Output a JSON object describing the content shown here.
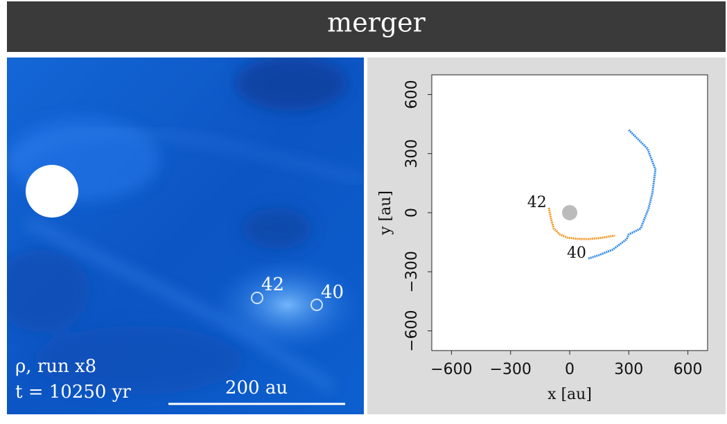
{
  "header": {
    "title": "merger"
  },
  "image_panel": {
    "labels": [
      "ρ, run x8",
      "t = 10250 yr"
    ],
    "scale_bar": "200 au",
    "markers": [
      "42",
      "40"
    ]
  },
  "chart_data": {
    "type": "line",
    "xlabel": "x [au]",
    "ylabel": "y [au]",
    "xlim": [
      -700,
      700
    ],
    "ylim": [
      -700,
      700
    ],
    "xticks": [
      {
        "value": -600,
        "label": "−600"
      },
      {
        "value": -300,
        "label": "−300"
      },
      0,
      300,
      600
    ],
    "yticks": [
      {
        "value": -600,
        "label": "−600"
      },
      {
        "value": -300,
        "label": "−300"
      },
      0,
      300,
      600
    ],
    "series": [
      {
        "color": "#f0961e",
        "x": [
          -106,
          -95,
          -81,
          -50,
          -11,
          40,
          95,
          160,
          230
        ],
        "values": [
          25,
          -30,
          -81,
          -110,
          -127,
          -133,
          -134,
          -128,
          -116
        ]
      },
      {
        "color": "#2f8ae6",
        "x": [
          300,
          340,
          395,
          435,
          420,
          400,
          360,
          300,
          290,
          219,
          150,
          95
        ],
        "values": [
          420,
          380,
          325,
          219,
          100,
          20,
          -81,
          -110,
          -134,
          -187,
          -215,
          -233
        ]
      }
    ],
    "center": {
      "x": 0,
      "y": 0,
      "color": "#bbbbbb"
    },
    "annotations": [
      {
        "text": "42",
        "x": -166,
        "y": 49
      },
      {
        "text": "40",
        "x": 35,
        "y": -208
      }
    ]
  }
}
